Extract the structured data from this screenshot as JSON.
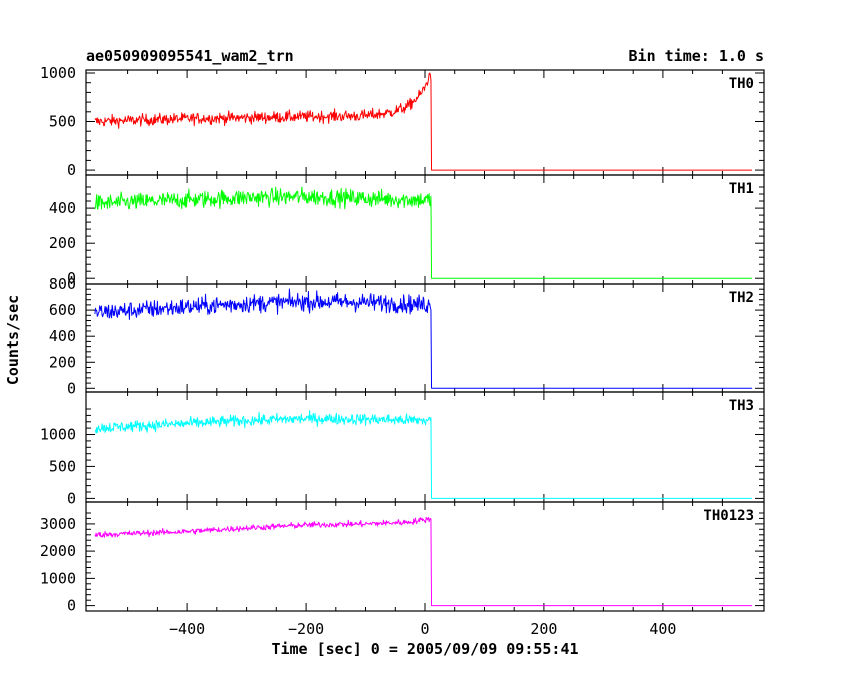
{
  "header": {
    "title": "ae050909095541_wam2_trn",
    "bin_time": "Bin time: 1.0 s"
  },
  "chart_data": {
    "type": "line",
    "xlabel": "Time [sec] 0 = 2005/09/09 09:55:41",
    "ylabel": "Counts/sec",
    "xlim": [
      -570,
      570
    ],
    "x_ticks": [
      -400,
      -200,
      0,
      200,
      400
    ],
    "x_tick_labels": [
      "−400",
      "−200",
      "0",
      "200",
      "400"
    ],
    "panels": [
      {
        "name": "TH0",
        "color": "#ff0000",
        "ylim": [
          -20,
          1000
        ],
        "y_ticks": [
          0,
          500,
          1000
        ],
        "y_tick_labels": [
          "0",
          "500",
          "1000"
        ],
        "x_start": -555,
        "x_drop": 10,
        "x_end": 550,
        "noise": 30,
        "after_level": 0,
        "profile": [
          [
            -555,
            500
          ],
          [
            -400,
            530
          ],
          [
            -200,
            550
          ],
          [
            -100,
            560
          ],
          [
            -60,
            590
          ],
          [
            -30,
            650
          ],
          [
            -10,
            760
          ],
          [
            0,
            850
          ],
          [
            8,
            980
          ]
        ]
      },
      {
        "name": "TH1",
        "color": "#00ff00",
        "ylim": [
          -10,
          520
        ],
        "y_ticks": [
          0,
          200,
          400
        ],
        "y_tick_labels": [
          "0",
          "200",
          "400"
        ],
        "x_start": -555,
        "x_drop": 10,
        "x_end": 550,
        "noise": 25,
        "after_level": 0,
        "profile": [
          [
            -555,
            425
          ],
          [
            -450,
            440
          ],
          [
            -300,
            460
          ],
          [
            -200,
            465
          ],
          [
            -100,
            455
          ],
          [
            8,
            445
          ]
        ]
      },
      {
        "name": "TH2",
        "color": "#0000ff",
        "ylim": [
          -5,
          800
        ],
        "y_ticks": [
          0,
          200,
          400,
          600,
          800
        ],
        "y_tick_labels": [
          "0",
          "200",
          "400",
          "600",
          "800"
        ],
        "x_start": -555,
        "x_drop": 10,
        "x_end": 550,
        "noise": 35,
        "after_level": 0,
        "profile": [
          [
            -555,
            580
          ],
          [
            -450,
            610
          ],
          [
            -300,
            650
          ],
          [
            -200,
            665
          ],
          [
            -100,
            660
          ],
          [
            8,
            640
          ]
        ]
      },
      {
        "name": "TH3",
        "color": "#00ffff",
        "ylim": [
          -10,
          1400
        ],
        "y_ticks": [
          0,
          500,
          1000
        ],
        "y_tick_labels": [
          "0",
          "500",
          "1000"
        ],
        "x_start": -555,
        "x_drop": 10,
        "x_end": 550,
        "noise": 45,
        "after_level": 0,
        "profile": [
          [
            -555,
            1100
          ],
          [
            -450,
            1150
          ],
          [
            -300,
            1220
          ],
          [
            -200,
            1250
          ],
          [
            -100,
            1240
          ],
          [
            8,
            1220
          ]
        ]
      },
      {
        "name": "TH0123",
        "color": "#ff00ff",
        "ylim": [
          -50,
          3400
        ],
        "y_ticks": [
          0,
          1000,
          2000,
          3000
        ],
        "y_tick_labels": [
          "0",
          "1000",
          "2000",
          "3000"
        ],
        "x_start": -555,
        "x_drop": 10,
        "x_end": 550,
        "noise": 55,
        "after_level": 0,
        "profile": [
          [
            -555,
            2600
          ],
          [
            -400,
            2720
          ],
          [
            -300,
            2850
          ],
          [
            -200,
            2960
          ],
          [
            -100,
            3000
          ],
          [
            -30,
            3060
          ],
          [
            8,
            3180
          ]
        ]
      }
    ]
  }
}
